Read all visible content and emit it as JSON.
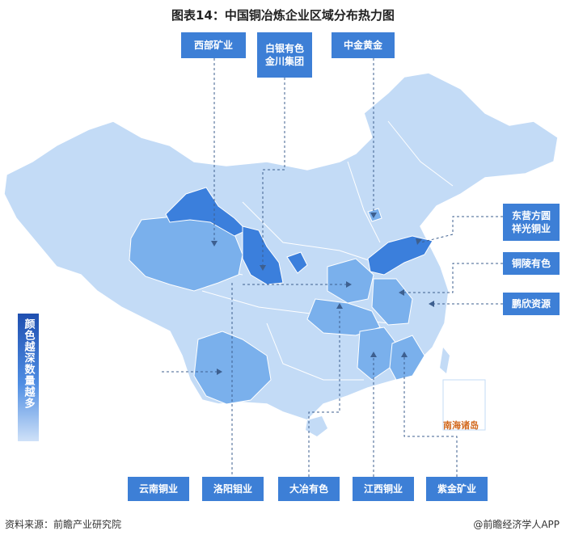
{
  "title": "图表14：中国铜冶炼企业区域分布热力图",
  "legend": "颜色越深数量越多",
  "nanhai_label": "南海诸岛",
  "source": "资料来源：前瞻产业研究院",
  "credit": "@前瞻经济学人APP",
  "colors": {
    "light": "#c3dbf6",
    "mid": "#7ab0ec",
    "dark": "#3b7fdc",
    "label_bg": "#3d7fd6"
  },
  "labels": {
    "xibu": "西部矿业",
    "baiyin": "白银有色\n金川集团",
    "zhongjin": "中金黄金",
    "dongying": "东营方圆\n祥光铜业",
    "tongling": "铜陵有色",
    "pengxin": "鹏欣资源",
    "yunnan": "云南铜业",
    "luoyang": "洛阳钼业",
    "daye": "大冶有色",
    "jiangxi": "江西铜业",
    "zijin": "紫金矿业"
  }
}
